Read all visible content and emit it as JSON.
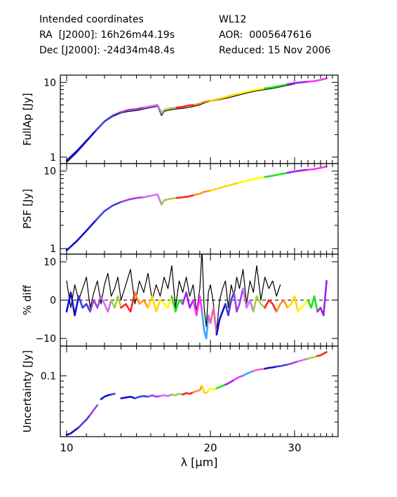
{
  "header": {
    "left": {
      "line1": "Intended coordinates",
      "line2": "RA  [J2000]: 16h26m44.19s",
      "line3": "Dec [J2000]: -24d34m48.4s"
    },
    "right": {
      "line1": "WL12",
      "line2": "AOR:  0005647616",
      "line3": "Reduced: 15 Nov 2006"
    }
  },
  "chart_data": {
    "type": "line",
    "xlabel": "λ [μm]",
    "x_scale": "log",
    "xlim": [
      9.7,
      37
    ],
    "x_ticks": [
      10,
      20,
      30
    ],
    "segment_colors": [
      "#1010d0",
      "#4040e0",
      "#a040e0",
      "#d070f0",
      "#a0d040",
      "#ff2020",
      "#ff9020",
      "#ffd800",
      "#ffff00",
      "#20e020",
      "#a020f0",
      "#ff30ff",
      "#40a0ff",
      "#f060b0"
    ],
    "panels": [
      {
        "id": "fullap",
        "ylabel": "FullAp [Jy]",
        "y_scale": "log",
        "ylim": [
          0.82,
          12.5
        ],
        "y_ticks": [
          {
            "v": 1,
            "label": "1"
          },
          {
            "v": 10,
            "label": "10"
          }
        ],
        "y_minor_ticks": [
          2,
          3,
          4,
          5,
          6,
          7,
          8,
          9
        ],
        "colored_x": [
          10,
          10.5,
          11,
          11.5,
          12,
          12.5,
          13,
          13.5,
          14,
          14.5,
          15,
          15.5,
          15.8,
          16,
          16.5,
          17,
          17.5,
          18,
          18.5,
          19,
          19.4,
          20,
          21,
          22,
          23,
          24,
          25,
          26,
          27,
          28,
          29,
          30,
          31,
          32,
          33,
          34,
          35
        ],
        "colored_y": [
          0.9,
          1.2,
          1.65,
          2.25,
          3.0,
          3.6,
          4.0,
          4.3,
          4.4,
          4.6,
          4.8,
          5.0,
          3.9,
          4.3,
          4.5,
          4.6,
          4.7,
          4.9,
          5.0,
          5.2,
          5.5,
          5.7,
          6.1,
          6.6,
          7.1,
          7.6,
          8.0,
          8.3,
          8.6,
          9.0,
          9.4,
          9.8,
          10.0,
          10.2,
          10.4,
          10.8,
          11.3
        ],
        "black_x": [
          10,
          10.5,
          11,
          11.5,
          12,
          12.5,
          13,
          13.5,
          14,
          14.5,
          15,
          15.5,
          15.8,
          16,
          16.5,
          17,
          17.5,
          18,
          18.5,
          19,
          19.4,
          20,
          21,
          22,
          23,
          24,
          25,
          26,
          27,
          28,
          29,
          30
        ],
        "black_y": [
          0.85,
          1.15,
          1.6,
          2.2,
          2.95,
          3.5,
          3.9,
          4.1,
          4.2,
          4.4,
          4.6,
          4.8,
          3.6,
          4.1,
          4.3,
          4.4,
          4.5,
          4.6,
          4.8,
          5.0,
          5.3,
          5.6,
          5.9,
          6.3,
          6.8,
          7.3,
          7.7,
          8.0,
          8.3,
          8.7,
          9.1,
          9.5
        ]
      },
      {
        "id": "psf",
        "ylabel": "PSF [Jy]",
        "y_scale": "log",
        "ylim": [
          0.85,
          12.5
        ],
        "y_ticks": [
          {
            "v": 1,
            "label": "1"
          },
          {
            "v": 10,
            "label": "10"
          }
        ],
        "y_minor_ticks": [
          2,
          3,
          4,
          5,
          6,
          7,
          8,
          9
        ],
        "colored_x": [
          10,
          10.5,
          11,
          11.5,
          12,
          12.5,
          13,
          13.5,
          14,
          14.5,
          15,
          15.5,
          15.8,
          16,
          16.5,
          17,
          17.5,
          18,
          18.5,
          19,
          19.4,
          20,
          21,
          22,
          23,
          24,
          25,
          26,
          27,
          28,
          29,
          30,
          31,
          32,
          33,
          34,
          35
        ],
        "colored_y": [
          0.95,
          1.25,
          1.7,
          2.3,
          3.05,
          3.6,
          4.0,
          4.3,
          4.5,
          4.6,
          4.8,
          5.0,
          3.7,
          4.2,
          4.4,
          4.5,
          4.6,
          4.7,
          4.9,
          5.1,
          5.4,
          5.6,
          6.1,
          6.6,
          7.1,
          7.6,
          8.0,
          8.4,
          8.7,
          9.1,
          9.5,
          9.9,
          10.2,
          10.4,
          10.6,
          11.0,
          11.4
        ],
        "black_x": [
          10,
          10.5,
          11,
          11.5,
          12,
          12.5,
          13,
          13.5,
          14,
          14.5,
          15,
          15.5,
          15.8,
          16,
          16.5,
          17,
          17.5,
          18,
          18.5,
          19,
          19.4,
          20,
          21,
          22,
          23,
          24,
          25,
          26,
          27,
          28,
          29,
          30,
          31,
          32,
          33
        ],
        "black_y": [
          0.95,
          1.25,
          1.7,
          2.3,
          3.05,
          3.6,
          4.0,
          4.3,
          4.5,
          4.6,
          4.8,
          5.0,
          3.7,
          4.2,
          4.4,
          4.5,
          4.6,
          4.7,
          4.9,
          5.1,
          5.4,
          5.6,
          6.1,
          6.6,
          7.1,
          7.6,
          8.0,
          8.4,
          8.7,
          9.1,
          9.5,
          9.9,
          10.1,
          10.3,
          10.5
        ]
      },
      {
        "id": "diff",
        "ylabel": "% diff",
        "y_scale": "linear",
        "ylim": [
          -12,
          12
        ],
        "y_ticks": [
          {
            "v": -10,
            "label": "−10"
          },
          {
            "v": 0,
            "label": "0"
          },
          {
            "v": 10,
            "label": "10"
          }
        ],
        "reference_line": 0,
        "colored_x": [
          10,
          10.2,
          10.4,
          10.6,
          10.8,
          11,
          11.2,
          11.4,
          11.6,
          11.8,
          12,
          12.2,
          12.4,
          12.6,
          12.8,
          13,
          13.3,
          13.6,
          13.9,
          14.2,
          14.5,
          14.8,
          15.1,
          15.4,
          15.7,
          16,
          16.3,
          16.6,
          16.9,
          17.2,
          17.5,
          17.8,
          18.1,
          18.4,
          18.7,
          19,
          19.2,
          19.4,
          19.6,
          19.8,
          20,
          20.3,
          20.6,
          20.9,
          21.2,
          21.5,
          21.8,
          22.1,
          22.4,
          22.7,
          23,
          23.4,
          23.8,
          24.2,
          24.6,
          25,
          25.5,
          26,
          26.5,
          27,
          27.5,
          28,
          28.5,
          29,
          29.5,
          30,
          30.5,
          31,
          31.5,
          32,
          32.5,
          33,
          33.5,
          34,
          34.5,
          35
        ],
        "colored_y": [
          -3,
          2,
          -4,
          1,
          -2,
          -1,
          -3,
          0,
          -2,
          1,
          -1,
          -3,
          0,
          -2,
          1,
          -2,
          -1,
          -3,
          2,
          -1,
          0,
          -2,
          1,
          -3,
          0,
          -1,
          -2,
          1,
          -3,
          0,
          -1,
          2,
          -2,
          0,
          -4,
          1,
          -3,
          -8,
          -10,
          -4,
          -6,
          -2,
          -9,
          -5,
          -3,
          -1,
          -4,
          0,
          2,
          -3,
          -1,
          3,
          -2,
          0,
          -3,
          1,
          -1,
          -2,
          0,
          -1,
          -3,
          -1,
          0,
          -2,
          -1,
          1,
          -3,
          -2,
          -1,
          0,
          -2,
          1,
          -3,
          -2,
          -4,
          5
        ],
        "black_x": [
          10,
          10.2,
          10.4,
          10.6,
          10.8,
          11,
          11.2,
          11.4,
          11.6,
          11.8,
          12,
          12.2,
          12.4,
          12.6,
          12.8,
          13,
          13.3,
          13.6,
          13.9,
          14.2,
          14.5,
          14.8,
          15.1,
          15.4,
          15.7,
          16,
          16.3,
          16.6,
          16.9,
          17.2,
          17.5,
          17.8,
          18.1,
          18.4,
          18.7,
          19,
          19.2,
          19.4,
          19.6,
          19.8,
          20,
          20.3,
          20.6,
          20.9,
          21.2,
          21.5,
          21.8,
          22.1,
          22.4,
          22.7,
          23,
          23.4,
          23.8,
          24.2,
          24.6,
          25,
          25.5,
          26,
          26.5,
          27,
          27.5,
          28
        ],
        "black_y": [
          5,
          -2,
          4,
          0,
          3,
          6,
          -2,
          2,
          5,
          -1,
          4,
          7,
          1,
          3,
          6,
          0,
          4,
          8,
          -1,
          5,
          2,
          7,
          0,
          4,
          1,
          6,
          3,
          9,
          -2,
          5,
          2,
          6,
          1,
          4,
          -3,
          3,
          13,
          -2,
          -7,
          2,
          4,
          -1,
          -8,
          0,
          3,
          5,
          -2,
          4,
          1,
          6,
          3,
          8,
          -1,
          5,
          2,
          9,
          0,
          6,
          3,
          5,
          1,
          4
        ]
      },
      {
        "id": "uncertainty",
        "ylabel": "Uncertainty [Jy]",
        "y_scale": "log",
        "ylim": [
          0.03,
          0.18
        ],
        "y_ticks": [
          {
            "v": 0.1,
            "label": "0.1"
          }
        ],
        "y_minor_ticks": [
          0.04,
          0.05,
          0.06,
          0.07,
          0.08,
          0.09
        ],
        "segments": [
          {
            "x": [
              10,
              10.2,
              10.4,
              10.6,
              10.8,
              11,
              11.2,
              11.4,
              11.6
            ],
            "y": [
              0.031,
              0.032,
              0.034,
              0.036,
              0.039,
              0.042,
              0.046,
              0.051,
              0.056
            ]
          },
          {
            "x": [
              11.8,
              12,
              12.2,
              12.4,
              12.6
            ],
            "y": [
              0.063,
              0.066,
              0.068,
              0.069,
              0.07
            ]
          },
          {
            "x": [
              13,
              13.3,
              13.6,
              13.9,
              14.2,
              14.5,
              14.8,
              15.1,
              15.4,
              15.7,
              16,
              16.3,
              16.6,
              16.9,
              17.2,
              17.5,
              17.8,
              18.1,
              18.4,
              18.7,
              19,
              19.2,
              19.4,
              19.6,
              19.8,
              20,
              20.3,
              20.6,
              20.9,
              21.2,
              21.5,
              21.8,
              22.1,
              22.4,
              22.7,
              23,
              23.4,
              23.8,
              24.2,
              24.6,
              25,
              25.5,
              26,
              26.5,
              27,
              27.5,
              28,
              28.5,
              29,
              29.5,
              30,
              30.5,
              31,
              31.5,
              32,
              32.5,
              33,
              33.5,
              34,
              34.5,
              35
            ],
            "y": [
              0.064,
              0.065,
              0.066,
              0.064,
              0.066,
              0.067,
              0.066,
              0.068,
              0.066,
              0.067,
              0.068,
              0.067,
              0.069,
              0.068,
              0.07,
              0.069,
              0.071,
              0.07,
              0.072,
              0.074,
              0.075,
              0.082,
              0.072,
              0.071,
              0.074,
              0.078,
              0.076,
              0.078,
              0.08,
              0.082,
              0.084,
              0.086,
              0.089,
              0.092,
              0.095,
              0.098,
              0.1,
              0.104,
              0.107,
              0.11,
              0.112,
              0.114,
              0.115,
              0.117,
              0.118,
              0.12,
              0.121,
              0.123,
              0.125,
              0.127,
              0.13,
              0.133,
              0.135,
              0.138,
              0.14,
              0.143,
              0.145,
              0.148,
              0.15,
              0.155,
              0.16
            ]
          }
        ]
      }
    ]
  }
}
